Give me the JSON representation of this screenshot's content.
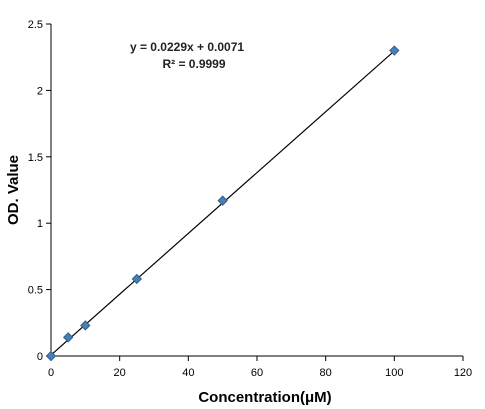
{
  "chart_data": {
    "type": "scatter",
    "xlabel": "Concentration(μM)",
    "ylabel": "OD. Value",
    "xlim": [
      0,
      120
    ],
    "ylim": [
      0,
      2.5
    ],
    "x_ticks": [
      "0",
      "20",
      "40",
      "60",
      "80",
      "100",
      "120"
    ],
    "y_ticks": [
      "0",
      "0.5",
      "1",
      "1.5",
      "2",
      "2.5"
    ],
    "grid": false,
    "legend": "none",
    "marker_color": "#4a7fb5",
    "series": [
      {
        "x": [
          0,
          5,
          10,
          25,
          50,
          100
        ],
        "y": [
          0.0,
          0.14,
          0.23,
          0.58,
          1.17,
          2.3
        ]
      }
    ],
    "trendline": {
      "slope": 0.0229,
      "intercept": 0.0071
    },
    "annotations": [
      "y = 0.0229x + 0.0071",
      "R² = 0.9999"
    ]
  }
}
